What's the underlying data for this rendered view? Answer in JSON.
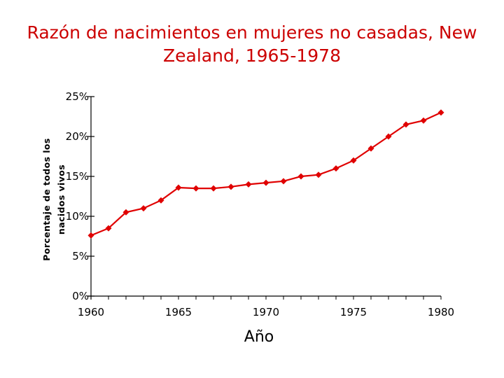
{
  "chart_data": {
    "type": "line",
    "title": "Razón de nacimientos en mujeres no casadas, New Zealand, 1965-1978",
    "xlabel": "Año",
    "ylabel_line1": "Porcentaje de todos los",
    "ylabel_line2": "nacidos vivos",
    "xlim": [
      1960,
      1980
    ],
    "ylim": [
      0,
      25
    ],
    "x_ticks": [
      1960,
      1965,
      1970,
      1975,
      1980
    ],
    "y_ticks": [
      0,
      5,
      10,
      15,
      20,
      25
    ],
    "y_tick_labels": [
      "0%",
      "5%",
      "10%",
      "15%",
      "20%",
      "25%"
    ],
    "grid": false,
    "legend": "none",
    "series": [
      {
        "color": "#e00000",
        "x": [
          1960,
          1961,
          1962,
          1963,
          1964,
          1965,
          1966,
          1967,
          1968,
          1969,
          1970,
          1971,
          1972,
          1973,
          1974,
          1975,
          1976,
          1977,
          1978,
          1979,
          1980
        ],
        "y": [
          7.6,
          8.5,
          10.5,
          11.0,
          12.0,
          13.6,
          13.5,
          13.5,
          13.7,
          14.0,
          14.2,
          14.4,
          15.0,
          15.2,
          16.0,
          17.0,
          18.5,
          20.0,
          21.5,
          22.0,
          23.0
        ]
      }
    ]
  }
}
